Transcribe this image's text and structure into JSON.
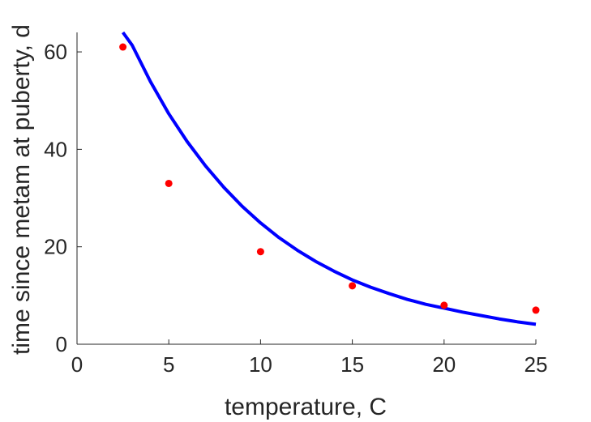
{
  "chart_data": {
    "type": "scatter",
    "xlabel": "temperature, C",
    "ylabel": "time since metam at puberty, d",
    "xlim": [
      0,
      25
    ],
    "ylim": [
      0,
      64
    ],
    "x_ticks": [
      "0",
      "5",
      "10",
      "15",
      "20",
      "25"
    ],
    "y_ticks": [
      "0",
      "20",
      "40",
      "60"
    ],
    "grid": false,
    "series": [
      {
        "kind": "points",
        "color": "#ff0000",
        "x": [
          2.5,
          5,
          10,
          15,
          20,
          25
        ],
        "y": [
          61,
          33,
          19,
          12,
          8,
          7
        ]
      },
      {
        "kind": "fitted-curve",
        "color": "#0000ff",
        "x": [
          2.5,
          3,
          4,
          5,
          6,
          7,
          8,
          9,
          10,
          11,
          12,
          13,
          14,
          15,
          16,
          17,
          18,
          19,
          20,
          21,
          22,
          23,
          24,
          25
        ],
        "y": [
          64,
          61.4,
          53.9,
          47.3,
          41.6,
          36.6,
          32.2,
          28.3,
          24.9,
          21.9,
          19.3,
          17.0,
          15.0,
          13.2,
          11.7,
          10.4,
          9.2,
          8.2,
          7.4,
          6.6,
          5.9,
          5.2,
          4.6,
          4.1
        ]
      }
    ]
  }
}
